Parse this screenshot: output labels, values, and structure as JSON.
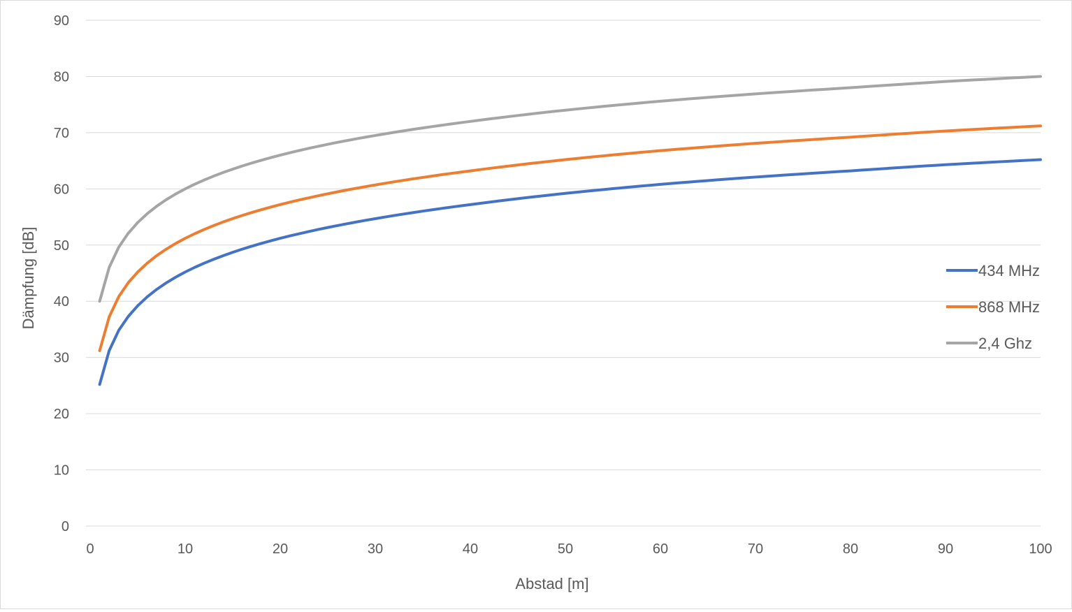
{
  "chart_data": {
    "type": "line",
    "title": "",
    "xlabel": "Abstad [m]",
    "ylabel": "Dämpfung  [dB]",
    "xlim": [
      0,
      100
    ],
    "ylim": [
      0,
      90
    ],
    "x_ticks": [
      0,
      10,
      20,
      30,
      40,
      50,
      60,
      70,
      80,
      90,
      100
    ],
    "y_ticks": [
      0,
      10,
      20,
      30,
      40,
      50,
      60,
      70,
      80,
      90
    ],
    "grid": "horizontal",
    "legend_position": "right",
    "x_range": [
      1,
      100
    ],
    "x_step": 1,
    "series": [
      {
        "name": "434 MHz",
        "color": "#4472C4",
        "values_at": {
          "x": [
            1,
            2,
            3,
            5,
            10,
            20,
            30,
            40,
            50,
            60,
            70,
            80,
            90,
            100
          ],
          "y": [
            25.2,
            31.2,
            34.8,
            39.2,
            45.2,
            51.2,
            54.7,
            57.2,
            59.2,
            60.8,
            62.1,
            63.2,
            64.3,
            65.2
          ]
        }
      },
      {
        "name": "868 MHz",
        "color": "#ED7D31",
        "values_at": {
          "x": [
            1,
            2,
            3,
            5,
            10,
            20,
            30,
            40,
            50,
            60,
            70,
            80,
            90,
            100
          ],
          "y": [
            31.2,
            37.2,
            40.8,
            45.2,
            51.2,
            57.2,
            60.7,
            63.2,
            65.2,
            66.8,
            68.1,
            69.2,
            70.3,
            71.2
          ]
        }
      },
      {
        "name": "2,4 Ghz",
        "color": "#A5A5A5",
        "values_at": {
          "x": [
            1,
            2,
            3,
            5,
            10,
            20,
            30,
            40,
            50,
            60,
            70,
            80,
            90,
            100
          ],
          "y": [
            40.0,
            46.0,
            49.6,
            54.0,
            60.0,
            66.0,
            69.5,
            72.0,
            74.0,
            75.6,
            76.9,
            78.0,
            79.1,
            80.0
          ]
        }
      }
    ]
  }
}
